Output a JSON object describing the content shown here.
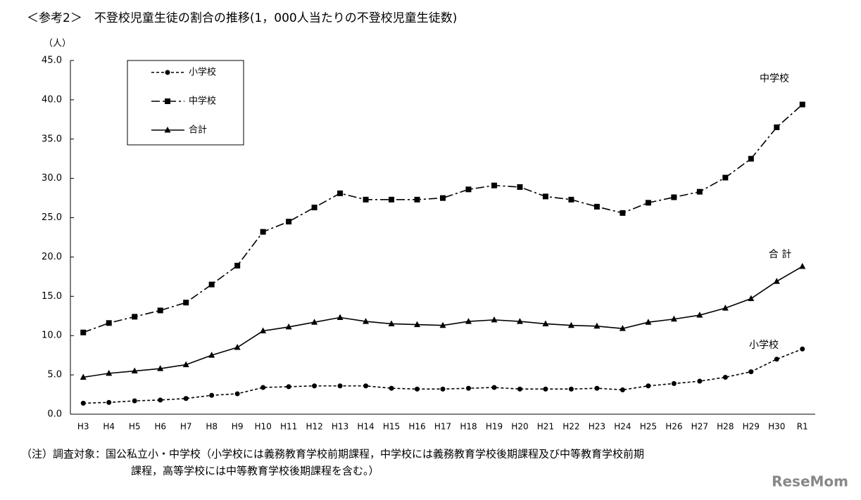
{
  "chart_data": {
    "type": "line",
    "title": "＜参考2＞　不登校児童生徒の割合の推移(1，000人当たりの不登校児童生徒数)",
    "y_label": "（人）",
    "categories": [
      "H3",
      "H4",
      "H5",
      "H6",
      "H7",
      "H8",
      "H9",
      "H10",
      "H11",
      "H12",
      "H13",
      "H14",
      "H15",
      "H16",
      "H17",
      "H18",
      "H19",
      "H20",
      "H21",
      "H22",
      "H23",
      "H24",
      "H25",
      "H26",
      "H27",
      "H28",
      "H29",
      "H30",
      "R1"
    ],
    "series": [
      {
        "name": "小学校",
        "color": "#000000",
        "line_style": "dashed",
        "marker": "circle",
        "values": [
          1.4,
          1.5,
          1.7,
          1.8,
          2.0,
          2.4,
          2.6,
          3.4,
          3.5,
          3.6,
          3.6,
          3.6,
          3.3,
          3.2,
          3.2,
          3.3,
          3.4,
          3.2,
          3.2,
          3.2,
          3.3,
          3.1,
          3.6,
          3.9,
          4.2,
          4.7,
          5.4,
          7.0,
          8.3
        ]
      },
      {
        "name": "中学校",
        "color": "#000000",
        "line_style": "dashdot",
        "marker": "square",
        "values": [
          10.4,
          11.6,
          12.4,
          13.2,
          14.2,
          16.5,
          18.9,
          23.2,
          24.5,
          26.3,
          28.1,
          27.3,
          27.3,
          27.3,
          27.5,
          28.6,
          29.1,
          28.9,
          27.7,
          27.3,
          26.4,
          25.6,
          26.9,
          27.6,
          28.3,
          30.1,
          32.5,
          36.5,
          39.4
        ]
      },
      {
        "name": "合計",
        "color": "#000000",
        "line_style": "solid",
        "marker": "triangle",
        "values": [
          4.7,
          5.2,
          5.5,
          5.8,
          6.3,
          7.5,
          8.5,
          10.6,
          11.1,
          11.7,
          12.3,
          11.8,
          11.5,
          11.4,
          11.3,
          11.8,
          12.0,
          11.8,
          11.5,
          11.3,
          11.2,
          10.9,
          11.7,
          12.1,
          12.6,
          13.5,
          14.7,
          16.9,
          18.8
        ]
      }
    ],
    "annotations": [
      "中学校",
      "合 計",
      "小学校"
    ],
    "ylim": [
      0,
      45
    ],
    "yticks": [
      {
        "value": 0,
        "label": "0.0"
      },
      {
        "value": 5,
        "label": "5.0"
      },
      {
        "value": 10,
        "label": "10.0"
      },
      {
        "value": 15,
        "label": "15.0"
      },
      {
        "value": 20,
        "label": "20.0"
      },
      {
        "value": 25,
        "label": "25.0"
      },
      {
        "value": 30,
        "label": "30.0"
      },
      {
        "value": 35,
        "label": "35.0"
      },
      {
        "value": 40,
        "label": "40.0"
      },
      {
        "value": 45,
        "label": "45.0"
      }
    ],
    "grid": false,
    "legend_position": "upper-left",
    "notes": [
      "（注）調査対象：国公私立小・中学校（小学校には義務教育学校前期課程，中学校には義務教育学校後期課程及び中等教育学校前期",
      "課程，高等学校には中等教育学校後期課程を含む。）"
    ],
    "watermark": "ReseMom"
  }
}
